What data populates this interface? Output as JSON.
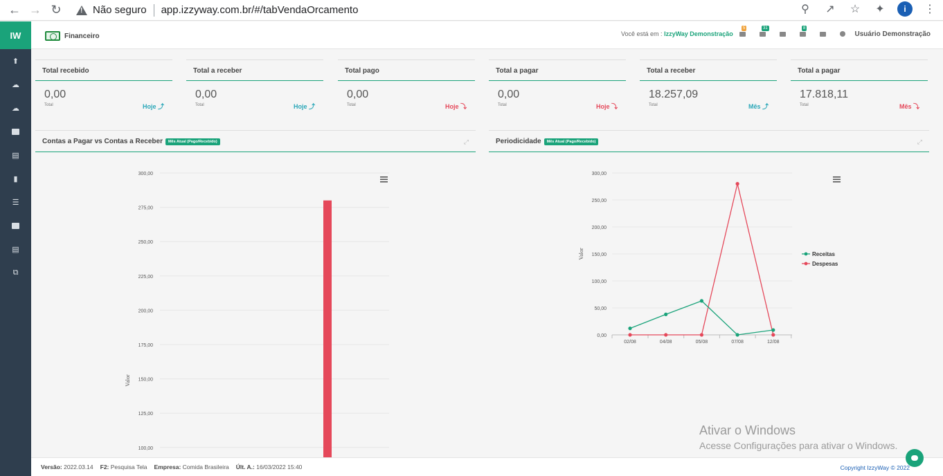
{
  "browser": {
    "security_label": "Não seguro",
    "url": "app.izzyway.com.br/#/tabVendaOrcamento",
    "profile_initial": "i"
  },
  "sidebar": {
    "logo": "IW"
  },
  "header": {
    "module_name": "Financeiro",
    "where_prefix": "Você está em :",
    "company": "IzzyWay Demonstração",
    "badges": {
      "orders": "5",
      "list": "31",
      "alerts": "8"
    },
    "user": "Usuário Demonstração"
  },
  "cards": [
    {
      "title": "Total recebido",
      "value": "0,00",
      "sub": "Total",
      "period": "Hoje ⤴",
      "trend": "up"
    },
    {
      "title": "Total a receber",
      "value": "0,00",
      "sub": "Total",
      "period": "Hoje ⤴",
      "trend": "up"
    },
    {
      "title": "Total pago",
      "value": "0,00",
      "sub": "Total",
      "period": "Hoje ⤵",
      "trend": "down"
    },
    {
      "title": "Total a pagar",
      "value": "0,00",
      "sub": "Total",
      "period": "Hoje ⤵",
      "trend": "down"
    },
    {
      "title": "Total a receber",
      "value": "18.257,09",
      "sub": "Total",
      "period": "Mês ⤴",
      "trend": "up"
    },
    {
      "title": "Total a pagar",
      "value": "17.818,11",
      "sub": "Total",
      "period": "Mês ⤵",
      "trend": "down"
    }
  ],
  "panels": {
    "left": {
      "title": "Contas a Pagar vs Contas a Receber",
      "tag": "Mês Atual (Pago/Recebido)"
    },
    "right": {
      "title": "Periodicidade",
      "tag": "Mês Atual (Pago/Recebido)"
    }
  },
  "chart_data": [
    {
      "type": "bar",
      "ylabel": "Valor",
      "yticks": [
        "300,00",
        "275,00",
        "250,00",
        "225,00",
        "200,00",
        "175,00",
        "150,00",
        "125,00",
        "100,00"
      ],
      "ylim_visible": [
        100,
        300
      ],
      "series": [
        {
          "values": [
            280
          ]
        }
      ],
      "color": "#e5485a"
    },
    {
      "type": "line",
      "ylabel": "Valor",
      "yticks": [
        "300,00",
        "250,00",
        "200,00",
        "150,00",
        "100,00",
        "50,00",
        "0,00"
      ],
      "ylim": [
        0,
        300
      ],
      "categories": [
        "02/08",
        "04/08",
        "05/08",
        "07/08",
        "12/08"
      ],
      "series": [
        {
          "name": "Receitas",
          "color": "#1aa37a",
          "values": [
            12,
            38,
            63,
            0,
            9
          ]
        },
        {
          "name": "Despesas",
          "color": "#e5485a",
          "values": [
            0,
            0,
            0,
            280,
            0
          ]
        }
      ],
      "legend": "right"
    }
  ],
  "footer": {
    "version_label": "Versão:",
    "version": "2022.03.14",
    "f2_label": "F2:",
    "f2": "Pesquisa Tela",
    "company_label": "Empresa:",
    "company": "Comida Brasileira",
    "last_label": "Últ. A.:",
    "last": "16/03/2022 15:40",
    "copyright": "Copyright IzzyWay © 2022"
  },
  "watermark": {
    "line1": "Ativar o Windows",
    "line2": "Acesse Configurações para ativar o Windows."
  }
}
